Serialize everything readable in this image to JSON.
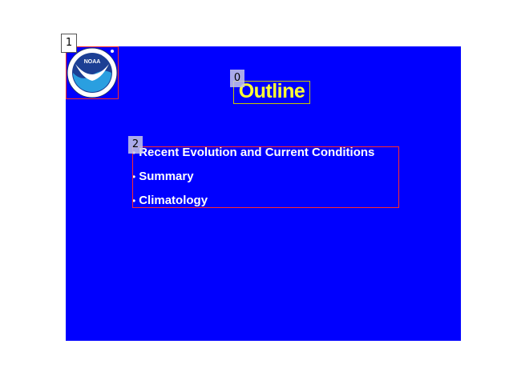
{
  "slide": {
    "background": "#0000ff",
    "title": "Outline",
    "title_color": "#ffff33",
    "logo": {
      "icon": "noaa-logo-icon",
      "text": "NOAA"
    },
    "bullet_symbol": "•",
    "bullets": [
      "Recent Evolution and Current Conditions",
      "Summary",
      "Climatology"
    ]
  },
  "annotations": {
    "labels": [
      "0",
      "1",
      "2"
    ]
  }
}
